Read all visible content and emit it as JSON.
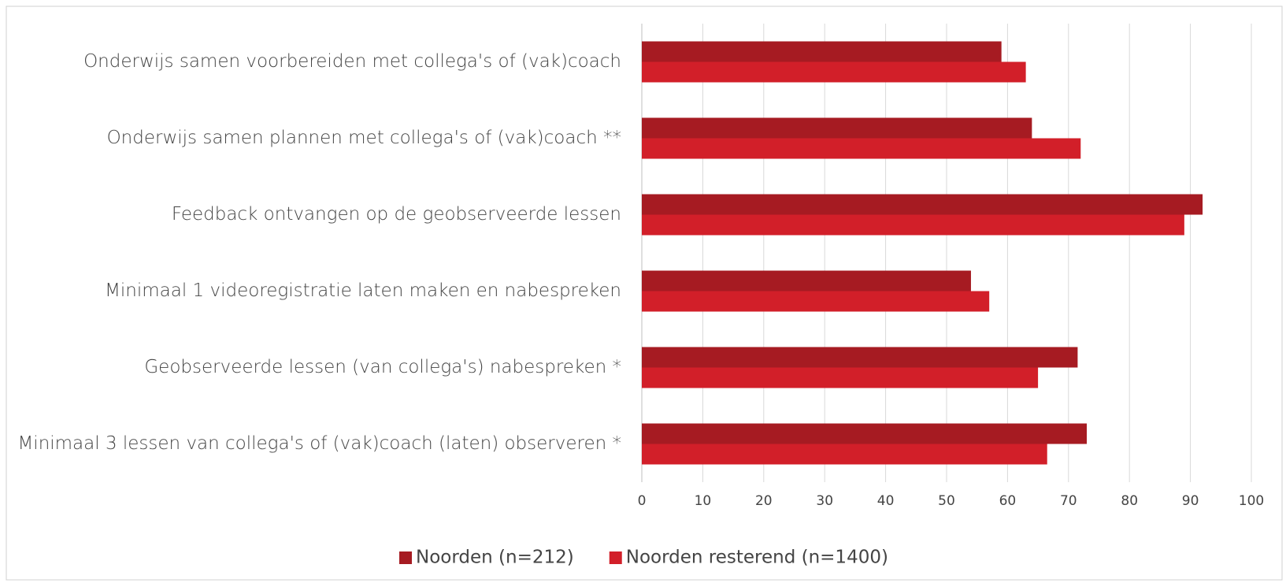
{
  "chart_data": {
    "type": "bar",
    "orientation": "horizontal",
    "categories": [
      "Onderwijs samen voorbereiden met collega's of (vak)coach",
      "Onderwijs samen plannen met collega's of (vak)coach **",
      "Feedback ontvangen op de geobserveerde lessen",
      "Minimaal 1 videoregistratie laten maken en nabespreken",
      "Geobserveerde lessen (van collega's) nabespreken *",
      "Minimaal 3 lessen van collega's of (vak)coach (laten) observeren *"
    ],
    "series": [
      {
        "name": "Noorden (n=212)",
        "color": "#a61b22",
        "values": [
          59,
          64,
          92,
          54,
          71.5,
          73
        ]
      },
      {
        "name": "Noorden resterend (n=1400)",
        "color": "#d21f29",
        "values": [
          63,
          72,
          89,
          57,
          65,
          66.5
        ]
      }
    ],
    "xlim": [
      0,
      100
    ],
    "xticks": [
      0,
      10,
      20,
      30,
      40,
      50,
      60,
      70,
      80,
      90,
      100
    ],
    "grid": true,
    "legend": "bottom"
  }
}
